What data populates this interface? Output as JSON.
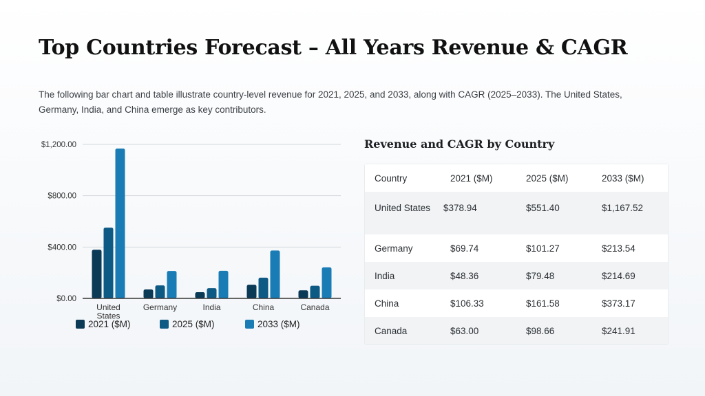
{
  "header": {
    "title": "Top Countries Forecast – All Years Revenue & CAGR",
    "intro": "The following bar chart and table illustrate country-level revenue for 2021, 2025, and 2033, along with CAGR (2025–2033). The United States, Germany, India, and China emerge as key contributors."
  },
  "chart_data": {
    "type": "bar",
    "categories": [
      "United States",
      "Germany",
      "India",
      "China",
      "Canada"
    ],
    "series": [
      {
        "name": "2021 ($M)",
        "values": [
          378.94,
          69.74,
          48.36,
          106.33,
          63.0
        ],
        "color": "#0b3a57"
      },
      {
        "name": "2025 ($M)",
        "values": [
          551.4,
          101.27,
          79.48,
          161.58,
          98.66
        ],
        "color": "#0d5a85"
      },
      {
        "name": "2033 ($M)",
        "values": [
          1167.52,
          213.54,
          214.69,
          373.17,
          241.91
        ],
        "color": "#1a7cb5"
      }
    ],
    "yticks": [
      "$0.00",
      "$400.00",
      "$800.00",
      "$1,200.00"
    ],
    "ylim": [
      0,
      1200
    ],
    "grid": true,
    "legend": "bottom"
  },
  "table": {
    "title": "Revenue and CAGR by Country",
    "columns": [
      "Country",
      "2021 ($M)",
      "2025 ($M)",
      "2033 ($M)"
    ],
    "rows": [
      [
        "United States",
        "$378.94",
        "$551.40",
        "$1,167.52"
      ],
      [
        "Germany",
        "$69.74",
        "$101.27",
        "$213.54"
      ],
      [
        "India",
        "$48.36",
        "$79.48",
        "$214.69"
      ],
      [
        "China",
        "$106.33",
        "$161.58",
        "$373.17"
      ],
      [
        "Canada",
        "$63.00",
        "$98.66",
        "$241.91"
      ]
    ]
  }
}
